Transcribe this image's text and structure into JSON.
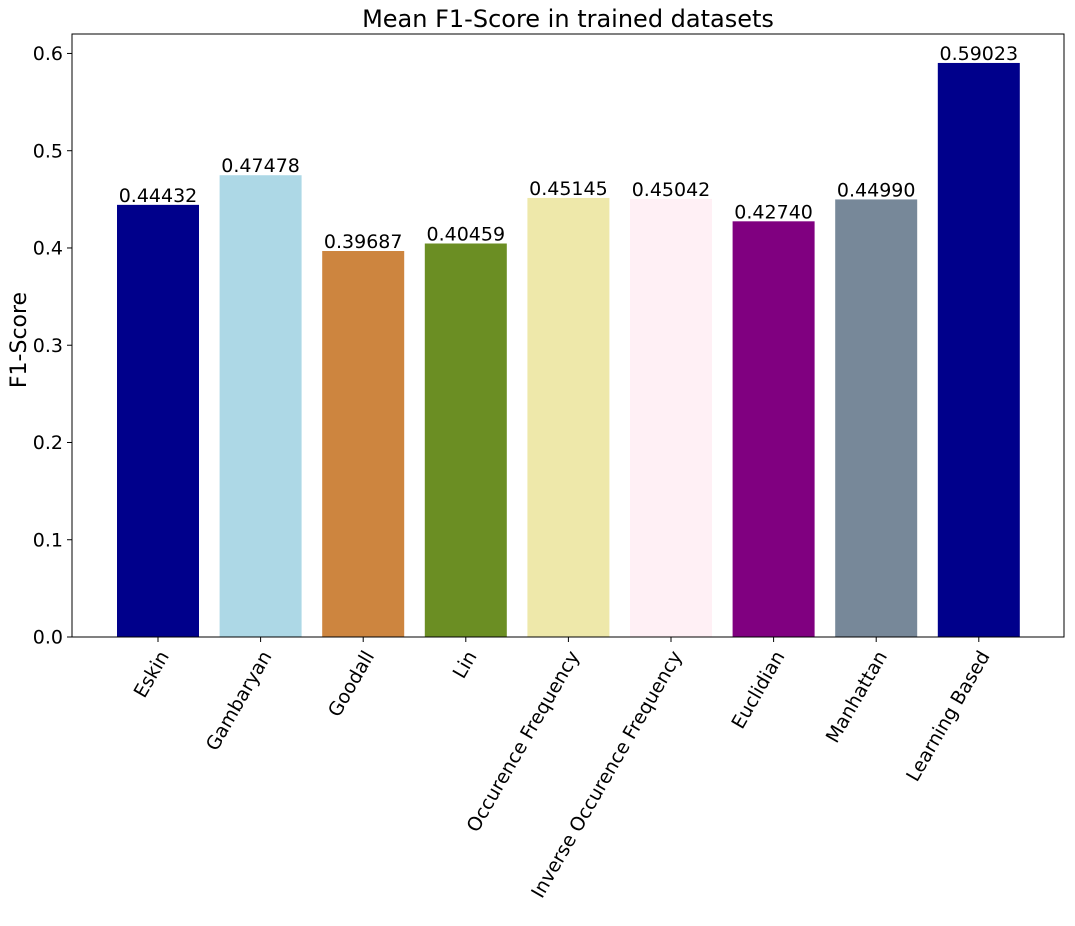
{
  "chart_data": {
    "type": "bar",
    "title": "Mean F1-Score in trained datasets",
    "xlabel": "",
    "ylabel": "F1-Score",
    "ylim": [
      0,
      0.62
    ],
    "yticks": [
      "0.0",
      "0.1",
      "0.2",
      "0.3",
      "0.4",
      "0.5",
      "0.6"
    ],
    "grid": false,
    "categories": [
      "Eskin",
      "Gambaryan",
      "Goodall",
      "Lin",
      "Occurence Frequency",
      "Inverse Occurence Frequency",
      "Euclidian",
      "Manhattan",
      "Learning Based"
    ],
    "values": [
      0.44432,
      0.47478,
      0.39687,
      0.40459,
      0.45145,
      0.45042,
      0.4274,
      0.4499,
      0.59023
    ],
    "data_labels": [
      "0.44432",
      "0.47478",
      "0.39687",
      "0.40459",
      "0.45145",
      "0.45042",
      "0.42740",
      "0.44990",
      "0.59023"
    ],
    "colors": [
      "#00008b",
      "#add8e6",
      "#cd853f",
      "#6b8e23",
      "#eee8aa",
      "#fff0f5",
      "#800080",
      "#778899",
      "#00008b"
    ]
  }
}
